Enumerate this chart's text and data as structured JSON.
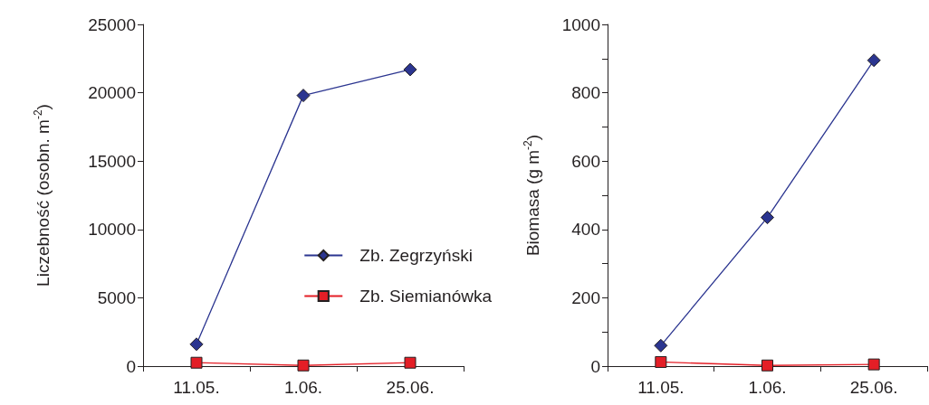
{
  "chart_data": [
    {
      "type": "line",
      "ylabel": "Liczebność (osobn. m$^{-2}$)",
      "categories": [
        "11.05.",
        "1.06.",
        "25.06."
      ],
      "ylim": [
        0,
        25000
      ],
      "yticks": [
        0,
        5000,
        10000,
        15000,
        20000,
        25000
      ],
      "legend": "right",
      "grid": false,
      "series": [
        {
          "name": "Zb. Zegrzyński",
          "color": "#2b3590",
          "marker": "diamond",
          "values": [
            1600,
            19800,
            21700
          ]
        },
        {
          "name": "Zb. Siemianówka",
          "color": "#e41e26",
          "marker": "square",
          "values": [
            250,
            50,
            250
          ]
        }
      ]
    },
    {
      "type": "line",
      "ylabel": "Biomasa (g m$^{-2}$)",
      "categories": [
        "11.05.",
        "1.06.",
        "25.06."
      ],
      "ylim": [
        0,
        1000
      ],
      "yticks": [
        0,
        {
          "value": 100,
          "label": null
        },
        200,
        {
          "value": 300,
          "label": null
        },
        400,
        {
          "value": 500,
          "label": null
        },
        600,
        {
          "value": 700,
          "label": null
        },
        800,
        {
          "value": 900,
          "label": null
        },
        1000
      ],
      "legend": false,
      "grid": false,
      "series": [
        {
          "color": "#2b3590",
          "marker": "diamond",
          "values": [
            60,
            435,
            895
          ]
        },
        {
          "color": "#e41e26",
          "marker": "square",
          "values": [
            12,
            2,
            5
          ]
        }
      ]
    }
  ]
}
